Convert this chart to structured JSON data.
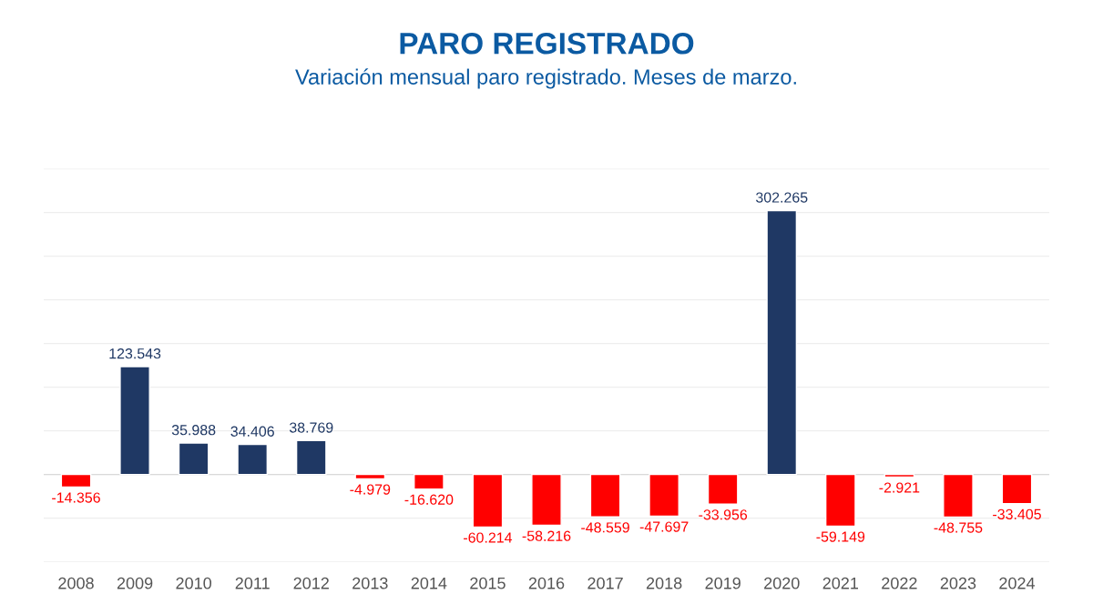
{
  "chart_data": {
    "type": "bar",
    "title": "PARO REGISTRADO",
    "subtitle": "Variación mensual paro registrado. Meses de marzo.",
    "categories": [
      "2008",
      "2009",
      "2010",
      "2011",
      "2012",
      "2013",
      "2014",
      "2015",
      "2016",
      "2017",
      "2018",
      "2019",
      "2020",
      "2021",
      "2022",
      "2023",
      "2024"
    ],
    "values": [
      -14356,
      123543,
      35988,
      34406,
      38769,
      -4979,
      -16620,
      -60214,
      -58216,
      -48559,
      -47697,
      -33956,
      302265,
      -59149,
      -2921,
      -48755,
      -33405
    ],
    "colors": [
      "#ff0000",
      "#1f3864",
      "#1f3864",
      "#1f3864",
      "#1f3864",
      "#ff0000",
      "#ff0000",
      "#ff0000",
      "#ff0000",
      "#ff0000",
      "#ff0000",
      "#ff0000",
      "#1f3864",
      "#ff0000",
      "#ff0000",
      "#ff0000",
      "#ff0000"
    ],
    "value_labels": [
      "-14.356",
      "123.543",
      "35.988",
      "34.406",
      "38.769",
      "-4.979",
      "-16.620",
      "-60.214",
      "-58.216",
      "-48.559",
      "-47.697",
      "-33.956",
      "302.265",
      "-59.149",
      "-2.921",
      "-48.755",
      "-33.405"
    ],
    "ylim": [
      -100000,
      350000
    ],
    "yticks": [
      {
        "value": -100000,
        "label": null
      },
      {
        "value": -50000,
        "label": null
      },
      {
        "value": 0,
        "label": null
      },
      {
        "value": 50000,
        "label": null
      },
      {
        "value": 100000,
        "label": null
      },
      {
        "value": 150000,
        "label": null
      },
      {
        "value": 200000,
        "label": null
      },
      {
        "value": 250000,
        "label": null
      },
      {
        "value": 300000,
        "label": null
      },
      {
        "value": 350000,
        "label": null
      }
    ],
    "grid": "y",
    "tick_labels": "x"
  }
}
